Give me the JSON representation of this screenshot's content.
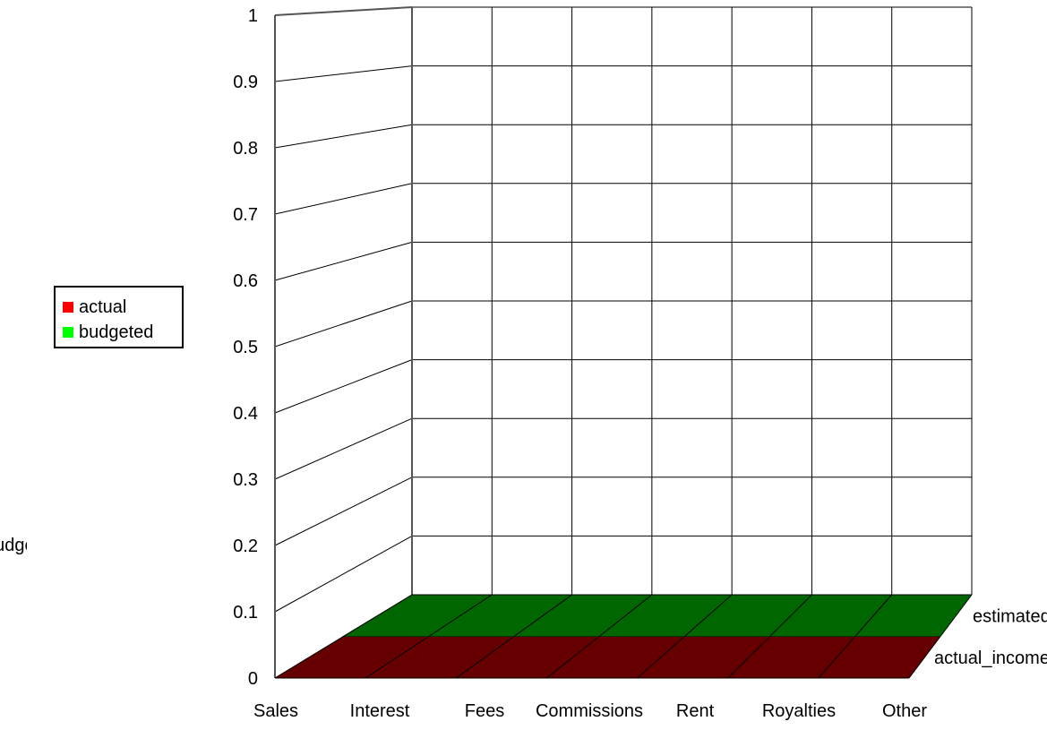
{
  "chart_data": {
    "type": "bar",
    "categories": [
      "Sales",
      "Interest",
      "Fees",
      "Commissions",
      "Rent",
      "Royalties",
      "Other"
    ],
    "series": [
      {
        "name": "actual_income",
        "values": [
          0,
          0,
          0,
          0,
          0,
          0,
          0
        ]
      },
      {
        "name": "estimated",
        "values": [
          0,
          0,
          0,
          0,
          0,
          0,
          0
        ]
      }
    ],
    "depth_labels": [
      "actual_income",
      "estimated"
    ],
    "y_ticks": [
      "0",
      "0.1",
      "0.2",
      "0.3",
      "0.4",
      "0.5",
      "0.6",
      "0.7",
      "0.8",
      "0.9",
      "1"
    ],
    "ylim": [
      0,
      1
    ],
    "grid": true,
    "three_d": true,
    "legend": {
      "position": "left",
      "items": [
        {
          "label": "actual",
          "color": "#ff0000"
        },
        {
          "label": "budgeted",
          "color": "#00ff00"
        }
      ]
    },
    "clipped_label": "budgeted",
    "colors": {
      "actual_floor": "#660000",
      "estimated_floor": "#006600"
    }
  }
}
